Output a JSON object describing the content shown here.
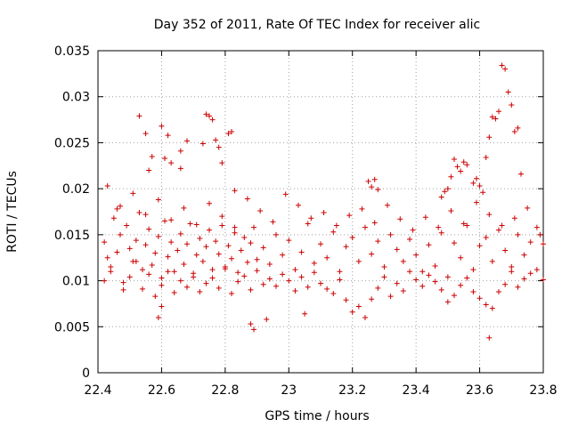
{
  "chart_data": {
    "type": "scatter",
    "title": "Day 352 of 2011, Rate Of TEC Index for receiver alic",
    "xlabel": "GPS time / hours",
    "ylabel": "ROTI / TECUs",
    "xlim": [
      22.4,
      23.8
    ],
    "ylim": [
      0,
      0.035
    ],
    "xticks": [
      22.4,
      22.6,
      22.8,
      23.0,
      23.2,
      23.4,
      23.6,
      23.8
    ],
    "xtick_labels": [
      "22.4",
      "22.6",
      "22.8",
      "23",
      "23.2",
      "23.4",
      "23.6",
      "23.8"
    ],
    "yticks": [
      0,
      0.005,
      0.01,
      0.015,
      0.02,
      0.025,
      0.03,
      0.035
    ],
    "ytick_labels": [
      "0",
      "0.005",
      "0.01",
      "0.015",
      "0.02",
      "0.025",
      "0.03",
      "0.035"
    ],
    "grid": true,
    "marker": "+",
    "color": "#cc0000",
    "series": [
      {
        "name": "ROTI",
        "x": [
          22.42,
          22.43,
          22.44,
          22.45,
          22.46,
          22.47,
          22.48,
          22.49,
          22.5,
          22.51,
          22.52,
          22.53,
          22.54,
          22.55,
          22.56,
          22.57,
          22.58,
          22.59,
          22.6,
          22.61,
          22.62,
          22.63,
          22.64,
          22.65,
          22.66,
          22.67,
          22.68,
          22.69,
          22.7,
          22.71,
          22.72,
          22.73,
          22.74,
          22.75,
          22.76,
          22.77,
          22.78,
          22.79,
          22.8,
          22.81,
          22.82,
          22.83,
          22.84,
          22.85,
          22.86,
          22.87,
          22.88,
          22.89,
          22.9,
          22.92,
          22.94,
          22.96,
          22.98,
          23.0,
          23.02,
          23.04,
          23.06,
          23.08,
          23.1,
          23.12,
          23.14,
          23.16,
          23.18,
          23.2,
          23.22,
          23.24,
          23.26,
          23.28,
          23.3,
          23.32,
          23.34,
          23.36,
          23.38,
          23.4,
          23.42,
          23.44,
          23.46,
          23.48,
          23.5,
          23.52,
          23.54,
          23.56,
          23.58,
          23.6,
          23.62,
          23.64,
          23.66,
          23.68,
          23.7,
          23.72,
          23.74,
          23.76,
          23.78,
          23.8,
          22.42,
          22.44,
          22.46,
          22.48,
          22.5,
          22.52,
          22.54,
          22.56,
          22.58,
          22.6,
          22.62,
          22.64,
          22.66,
          22.68,
          22.7,
          22.72,
          22.74,
          22.76,
          22.78,
          22.8,
          22.82,
          22.84,
          22.86,
          22.88,
          22.9,
          22.92,
          22.94,
          22.96,
          22.98,
          23.0,
          23.02,
          23.04,
          23.06,
          23.08,
          23.1,
          23.12,
          23.14,
          23.16,
          23.18,
          23.2,
          23.22,
          23.24,
          23.26,
          23.28,
          23.3,
          23.32,
          23.34,
          23.36,
          23.38,
          23.4,
          23.42,
          23.44,
          23.46,
          23.48,
          23.5,
          23.52,
          23.54,
          23.56,
          23.58,
          23.6,
          23.62,
          23.64,
          23.66,
          23.68,
          23.7,
          23.72,
          23.74,
          23.76,
          23.78,
          23.8,
          22.43,
          22.47,
          22.51,
          22.55,
          22.59,
          22.63,
          22.67,
          22.71,
          22.75,
          22.79,
          22.83,
          22.87,
          22.91,
          22.95,
          22.99,
          23.03,
          23.07,
          23.11,
          23.15,
          23.19,
          23.23,
          23.27,
          23.31,
          23.35,
          23.39,
          23.43,
          23.47,
          23.51,
          23.55,
          23.59,
          23.63,
          23.67,
          23.71,
          23.75,
          23.79,
          22.53,
          22.55,
          22.6,
          22.62,
          22.66,
          22.68,
          22.73,
          22.74,
          22.75,
          22.76,
          22.77,
          22.78,
          22.79,
          22.81,
          22.82,
          22.61,
          22.63,
          22.56,
          22.57,
          22.66,
          23.63,
          23.64,
          23.65,
          23.66,
          23.67,
          23.68,
          23.69,
          23.7,
          23.71,
          23.72,
          23.73,
          23.62,
          23.5,
          23.51,
          23.52,
          23.53,
          23.54,
          23.55,
          23.56,
          23.58,
          23.59,
          23.6,
          23.61,
          23.48,
          23.49,
          23.25,
          23.26,
          23.27,
          23.28,
          22.83,
          22.88,
          22.89,
          22.59,
          22.6,
          23.63,
          22.93,
          23.05
        ],
        "y": [
          0.0142,
          0.0125,
          0.011,
          0.0168,
          0.0131,
          0.015,
          0.0098,
          0.016,
          0.0135,
          0.0121,
          0.0144,
          0.0174,
          0.0112,
          0.0139,
          0.0156,
          0.0117,
          0.013,
          0.0148,
          0.0103,
          0.0165,
          0.0126,
          0.0142,
          0.011,
          0.0133,
          0.0151,
          0.0118,
          0.014,
          0.0162,
          0.0104,
          0.0128,
          0.0146,
          0.0121,
          0.0137,
          0.0155,
          0.0112,
          0.0143,
          0.0129,
          0.016,
          0.0115,
          0.0138,
          0.0124,
          0.0152,
          0.0109,
          0.0133,
          0.0147,
          0.012,
          0.0141,
          0.0158,
          0.0123,
          0.0136,
          0.0118,
          0.015,
          0.0128,
          0.0144,
          0.0112,
          0.0131,
          0.0162,
          0.0119,
          0.014,
          0.0125,
          0.0153,
          0.011,
          0.0137,
          0.0147,
          0.0121,
          0.0158,
          0.0129,
          0.0143,
          0.0115,
          0.015,
          0.0134,
          0.0121,
          0.0145,
          0.0128,
          0.011,
          0.0139,
          0.0116,
          0.0152,
          0.0104,
          0.0141,
          0.0125,
          0.016,
          0.0112,
          0.0138,
          0.0147,
          0.0121,
          0.0155,
          0.0133,
          0.0115,
          0.015,
          0.0128,
          0.0142,
          0.0158,
          0.014,
          0.01,
          0.0115,
          0.0178,
          0.009,
          0.0104,
          0.0121,
          0.0091,
          0.0107,
          0.0083,
          0.0095,
          0.011,
          0.0087,
          0.01,
          0.0093,
          0.0108,
          0.0088,
          0.0097,
          0.0103,
          0.0092,
          0.0113,
          0.0086,
          0.0099,
          0.0105,
          0.009,
          0.0111,
          0.0096,
          0.0102,
          0.0094,
          0.0107,
          0.01,
          0.0089,
          0.0104,
          0.0093,
          0.0109,
          0.0097,
          0.0091,
          0.0086,
          0.0101,
          0.0079,
          0.0066,
          0.0072,
          0.006,
          0.008,
          0.0092,
          0.0104,
          0.0083,
          0.0097,
          0.0089,
          0.011,
          0.0101,
          0.0094,
          0.0106,
          0.0099,
          0.009,
          0.0077,
          0.0084,
          0.0095,
          0.0103,
          0.0088,
          0.0081,
          0.0074,
          0.007,
          0.0088,
          0.0096,
          0.011,
          0.0093,
          0.0102,
          0.0108,
          0.0112,
          0.0101,
          0.0203,
          0.0181,
          0.0195,
          0.0172,
          0.0188,
          0.0166,
          0.0179,
          0.0161,
          0.0184,
          0.017,
          0.0158,
          0.0189,
          0.0176,
          0.0164,
          0.0194,
          0.0182,
          0.0168,
          0.0174,
          0.016,
          0.0171,
          0.0178,
          0.0163,
          0.0182,
          0.0167,
          0.0155,
          0.0169,
          0.0158,
          0.0176,
          0.0162,
          0.0185,
          0.0172,
          0.016,
          0.0168,
          0.0179,
          0.015,
          0.0279,
          0.026,
          0.0268,
          0.0258,
          0.0241,
          0.0252,
          0.0249,
          0.0281,
          0.0279,
          0.0275,
          0.0253,
          0.0245,
          0.0228,
          0.026,
          0.0262,
          0.0233,
          0.0228,
          0.022,
          0.0235,
          0.0222,
          0.0256,
          0.0278,
          0.0276,
          0.0284,
          0.0334,
          0.033,
          0.0305,
          0.0291,
          0.0262,
          0.0266,
          0.0216,
          0.0234,
          0.02,
          0.0213,
          0.0232,
          0.0224,
          0.0219,
          0.0229,
          0.0226,
          0.0206,
          0.0211,
          0.0203,
          0.0196,
          0.0191,
          0.0197,
          0.0208,
          0.0202,
          0.021,
          0.0199,
          0.0198,
          0.0053,
          0.0047,
          0.006,
          0.0072,
          0.0038,
          0.0058,
          0.0064
        ]
      }
    ]
  }
}
